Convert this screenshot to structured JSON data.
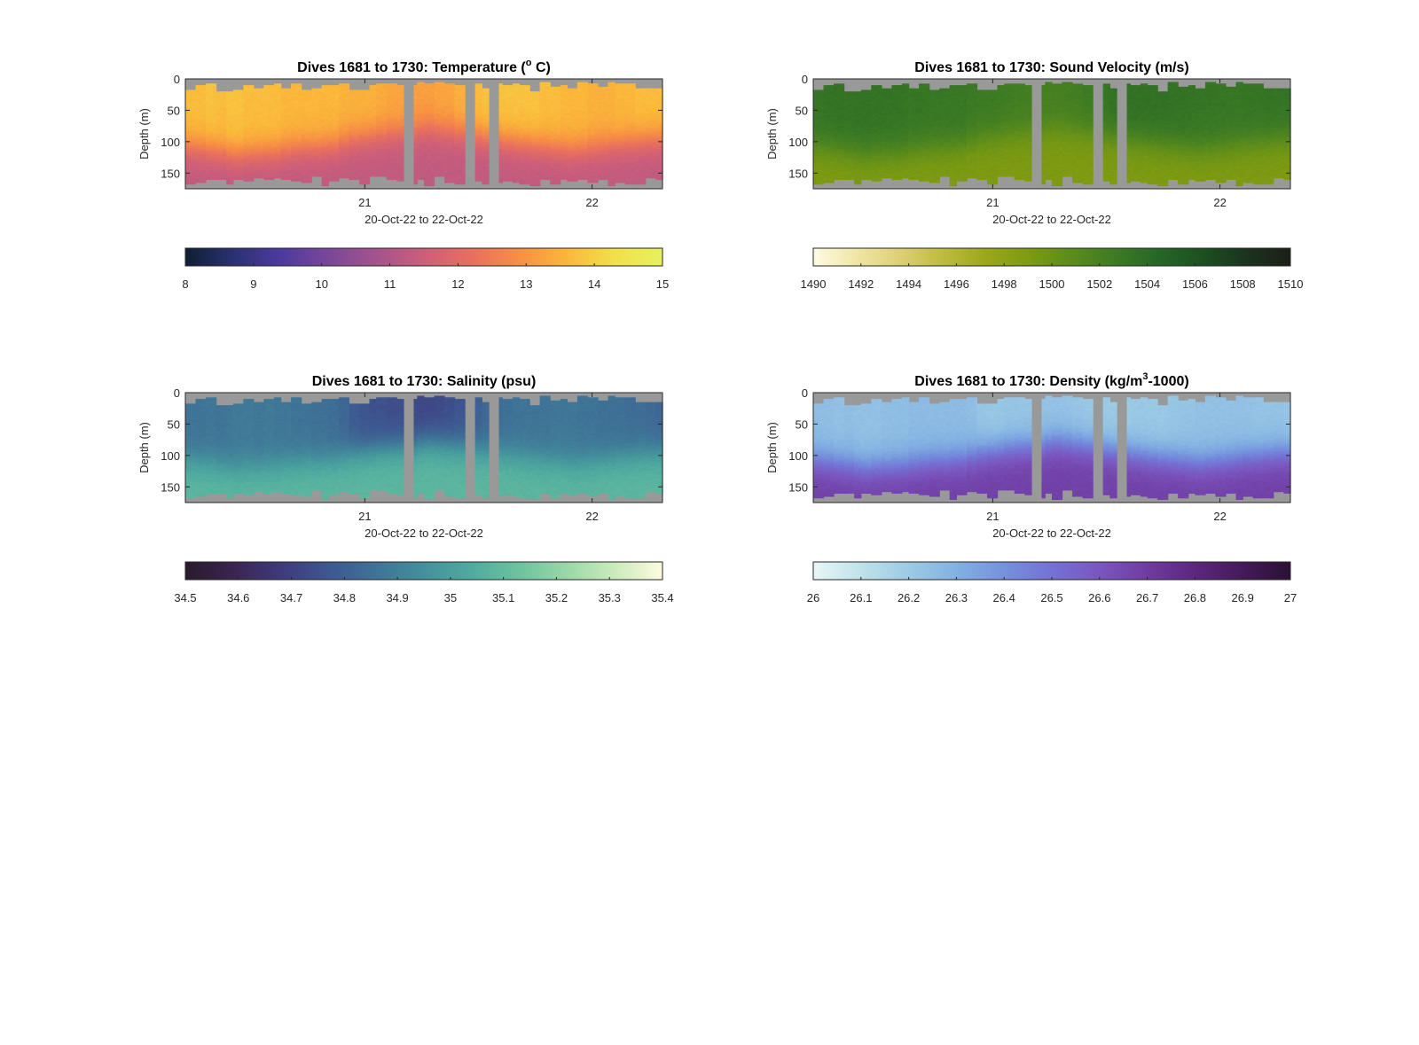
{
  "chart_data": [
    {
      "type": "heatmap",
      "title_prefix": "Dives 1681 to 1730: Temperature (",
      "title_sup": "o",
      "title_suffix": " C)",
      "xlabel": "20-Oct-22 to 22-Oct-22",
      "ylabel": "Depth (m)",
      "x_range_days": [
        20.21,
        22.31
      ],
      "x_tick_values": [
        21,
        22
      ],
      "x_tick_labels": [
        "21",
        "22"
      ],
      "y_ticks": [
        0,
        50,
        100,
        150
      ],
      "ylim": [
        0,
        175
      ],
      "gap_intervals_days": [
        [
          21.17,
          21.21
        ],
        [
          21.44,
          21.48
        ],
        [
          21.55,
          21.59
        ]
      ],
      "bottom_depth_range_m": [
        155,
        170
      ],
      "surface_values_by_dive": [
        13.7,
        13.7,
        13.8,
        13.7,
        13.8,
        13.8,
        13.7,
        13.7,
        13.7,
        13.7,
        13.6,
        13.6,
        13.6,
        13.6,
        13.6,
        13.6,
        13.5,
        13.5,
        13.5,
        13.5,
        13.4,
        13.3,
        13.3,
        13.2,
        13.2,
        13.2,
        13.3,
        13.3,
        13.5,
        13.6,
        13.7,
        13.8,
        13.8,
        13.8,
        13.8,
        13.8,
        13.8,
        13.7,
        13.7,
        13.6,
        13.6,
        13.6,
        13.5,
        13.5,
        13.5,
        13.6,
        13.6,
        13.7,
        13.7,
        13.7
      ],
      "thermocline_depth_m_by_dive": [
        108,
        110,
        112,
        115,
        118,
        120,
        118,
        117,
        116,
        115,
        112,
        110,
        108,
        108,
        106,
        105,
        100,
        95,
        92,
        90,
        88,
        86,
        85,
        84,
        80,
        78,
        80,
        82,
        84,
        86,
        90,
        92,
        95,
        98,
        100,
        102,
        104,
        106,
        108,
        110,
        112,
        110,
        108,
        106,
        104,
        102,
        100,
        98,
        96,
        95
      ],
      "deep_value": 11.3,
      "colorbar": {
        "min": 8,
        "max": 15,
        "tick_labels": [
          "8",
          "9",
          "10",
          "11",
          "12",
          "13",
          "14",
          "15"
        ],
        "colors": [
          "#0f1e33",
          "#2a3172",
          "#4d3a9e",
          "#7a4799",
          "#a4538c",
          "#cc5e7a",
          "#e86f5f",
          "#f78f44",
          "#fbb73a",
          "#f2e04a",
          "#e6f25c"
        ]
      }
    },
    {
      "type": "heatmap",
      "title": "Dives 1681 to 1730: Sound Velocity (m/s)",
      "xlabel": "20-Oct-22 to 22-Oct-22",
      "ylabel": "Depth (m)",
      "x_range_days": [
        20.21,
        22.31
      ],
      "x_tick_values": [
        21,
        22
      ],
      "x_tick_labels": [
        "21",
        "22"
      ],
      "y_ticks": [
        0,
        50,
        100,
        150
      ],
      "ylim": [
        0,
        175
      ],
      "gap_intervals_days": [
        [
          21.17,
          21.21
        ],
        [
          21.44,
          21.48
        ],
        [
          21.55,
          21.59
        ]
      ],
      "bottom_depth_range_m": [
        155,
        170
      ],
      "surface_values_by_dive": [
        1503.2,
        1503.3,
        1503.4,
        1503.3,
        1503.4,
        1503.4,
        1503.3,
        1503.3,
        1503.3,
        1503.2,
        1503.1,
        1503.1,
        1503.0,
        1503.0,
        1503.0,
        1503.0,
        1502.8,
        1502.7,
        1502.7,
        1502.6,
        1502.5,
        1502.4,
        1502.3,
        1502.2,
        1502.2,
        1502.2,
        1502.3,
        1502.4,
        1502.7,
        1502.9,
        1503.2,
        1503.4,
        1503.5,
        1503.5,
        1503.5,
        1503.5,
        1503.5,
        1503.4,
        1503.4,
        1503.3,
        1503.2,
        1503.2,
        1503.1,
        1503.1,
        1503.1,
        1503.2,
        1503.2,
        1503.3,
        1503.3,
        1503.3
      ],
      "thermocline_depth_m_by_dive": [
        108,
        110,
        112,
        115,
        118,
        120,
        118,
        117,
        116,
        115,
        112,
        110,
        108,
        108,
        106,
        105,
        100,
        95,
        92,
        90,
        88,
        86,
        85,
        84,
        80,
        78,
        80,
        82,
        84,
        86,
        90,
        92,
        95,
        98,
        100,
        102,
        104,
        106,
        108,
        110,
        112,
        110,
        108,
        106,
        104,
        102,
        100,
        98,
        96,
        95
      ],
      "deep_value": 1499.0,
      "colorbar": {
        "min": 1490,
        "max": 1510,
        "tick_labels": [
          "1490",
          "1492",
          "1494",
          "1496",
          "1498",
          "1500",
          "1502",
          "1504",
          "1506",
          "1508",
          "1510"
        ],
        "colors": [
          "#fdfbe4",
          "#f0e6a4",
          "#dcd075",
          "#bdbb3e",
          "#9aa718",
          "#7c9a12",
          "#5a8b1c",
          "#3c7a24",
          "#256626",
          "#1c4f22",
          "#1b331d",
          "#1c1f17"
        ]
      }
    },
    {
      "type": "heatmap",
      "title": "Dives 1681 to 1730: Salinity (psu)",
      "xlabel": "20-Oct-22 to 22-Oct-22",
      "ylabel": "Depth (m)",
      "x_range_days": [
        20.21,
        22.31
      ],
      "x_tick_values": [
        21,
        22
      ],
      "x_tick_labels": [
        "21",
        "22"
      ],
      "y_ticks": [
        0,
        50,
        100,
        150
      ],
      "ylim": [
        0,
        175
      ],
      "gap_intervals_days": [
        [
          21.17,
          21.21
        ],
        [
          21.44,
          21.48
        ],
        [
          21.55,
          21.59
        ]
      ],
      "bottom_depth_range_m": [
        155,
        170
      ],
      "surface_values_by_dive": [
        34.86,
        34.86,
        34.87,
        34.86,
        34.87,
        34.88,
        34.88,
        34.87,
        34.88,
        34.87,
        34.87,
        34.86,
        34.86,
        34.85,
        34.85,
        34.84,
        34.82,
        34.78,
        34.76,
        34.75,
        34.75,
        34.74,
        34.74,
        34.73,
        34.72,
        34.72,
        34.73,
        34.74,
        34.76,
        34.78,
        34.8,
        34.82,
        34.84,
        34.85,
        34.86,
        34.86,
        34.86,
        34.86,
        34.87,
        34.87,
        34.87,
        34.86,
        34.86,
        34.85,
        34.85,
        34.85,
        34.84,
        34.84,
        34.83,
        34.82
      ],
      "thermocline_depth_m_by_dive": [
        108,
        110,
        112,
        115,
        118,
        120,
        118,
        117,
        116,
        115,
        112,
        110,
        108,
        108,
        106,
        105,
        100,
        95,
        92,
        90,
        88,
        86,
        85,
        84,
        80,
        78,
        80,
        82,
        84,
        86,
        90,
        92,
        95,
        98,
        100,
        102,
        104,
        106,
        108,
        110,
        112,
        110,
        108,
        106,
        104,
        102,
        100,
        98,
        96,
        95
      ],
      "deep_value": 35.08,
      "colorbar": {
        "min": 34.5,
        "max": 35.4,
        "tick_labels": [
          "34.5",
          "34.6",
          "34.7",
          "34.8",
          "34.9",
          "35",
          "35.1",
          "35.2",
          "35.3",
          "35.4"
        ],
        "colors": [
          "#281a2c",
          "#3b2550",
          "#3f3a7c",
          "#3e5791",
          "#3f7397",
          "#44909c",
          "#50ab9f",
          "#6cc39f",
          "#9bd8a7",
          "#cbebbc",
          "#fdfbe0"
        ]
      }
    },
    {
      "type": "heatmap",
      "title_prefix": "Dives 1681 to 1730: Density (kg/m",
      "title_sup": "3",
      "title_suffix": "-1000)",
      "xlabel": "20-Oct-22 to 22-Oct-22",
      "ylabel": "Depth (m)",
      "x_range_days": [
        20.21,
        22.31
      ],
      "x_tick_values": [
        21,
        22
      ],
      "x_tick_labels": [
        "21",
        "22"
      ],
      "y_ticks": [
        0,
        50,
        100,
        150
      ],
      "ylim": [
        0,
        175
      ],
      "gap_intervals_days": [
        [
          21.17,
          21.21
        ],
        [
          21.44,
          21.48
        ],
        [
          21.55,
          21.59
        ]
      ],
      "bottom_depth_range_m": [
        155,
        170
      ],
      "surface_values_by_dive": [
        26.25,
        26.25,
        26.24,
        26.25,
        26.24,
        26.24,
        26.24,
        26.25,
        26.25,
        26.25,
        26.26,
        26.26,
        26.26,
        26.26,
        26.26,
        26.26,
        26.25,
        26.22,
        26.21,
        26.21,
        26.22,
        26.22,
        26.22,
        26.23,
        26.23,
        26.23,
        26.23,
        26.22,
        26.21,
        26.2,
        26.2,
        26.2,
        26.2,
        26.21,
        26.21,
        26.21,
        26.21,
        26.22,
        26.23,
        26.23,
        26.24,
        26.24,
        26.24,
        26.24,
        26.24,
        26.24,
        26.23,
        26.23,
        26.23,
        26.22
      ],
      "thermocline_depth_m_by_dive": [
        108,
        110,
        112,
        115,
        118,
        120,
        118,
        117,
        116,
        115,
        112,
        110,
        108,
        108,
        106,
        105,
        100,
        95,
        92,
        90,
        88,
        86,
        85,
        84,
        80,
        78,
        80,
        82,
        84,
        86,
        90,
        92,
        95,
        98,
        100,
        102,
        104,
        106,
        108,
        110,
        112,
        110,
        108,
        106,
        104,
        102,
        100,
        98,
        96,
        95
      ],
      "deep_value": 26.68,
      "colorbar": {
        "min": 26,
        "max": 27,
        "tick_labels": [
          "26",
          "26.1",
          "26.2",
          "26.3",
          "26.4",
          "26.5",
          "26.6",
          "26.7",
          "26.8",
          "26.9",
          "27"
        ],
        "colors": [
          "#e9f6f5",
          "#bfe2ea",
          "#9ccbe4",
          "#83b1e3",
          "#7591dc",
          "#7571d4",
          "#7a56bf",
          "#6f3ca1",
          "#5c277f",
          "#441a5a",
          "#2a1133"
        ]
      }
    }
  ],
  "missing_color": "#999999"
}
